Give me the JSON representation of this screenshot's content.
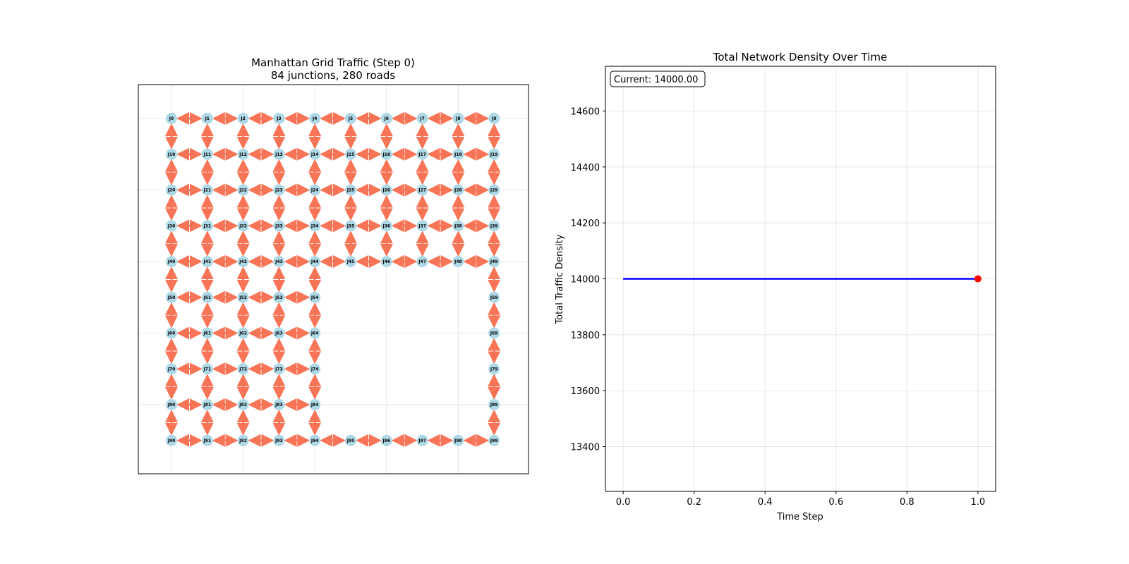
{
  "chart_data": [
    {
      "type": "network",
      "title_line1": "Manhattan Grid Traffic (Step 0)",
      "title_line2": "84 junctions, 280 roads",
      "grid_cols": 10,
      "grid_rows": 10,
      "missing_blocks": [
        {
          "rows": [
            5,
            8
          ],
          "cols": [
            5,
            8
          ]
        }
      ],
      "node_label_prefix": "J",
      "colors": {
        "node": "#add8e6",
        "edge": "#f87456",
        "grid": "#e6e6e6",
        "axis": "#000000"
      }
    },
    {
      "type": "line",
      "title": "Total Network Density Over Time",
      "xlabel": "Time Step",
      "ylabel": "Total Traffic Density",
      "x": [
        0,
        1
      ],
      "y": [
        14000,
        14000
      ],
      "current_point": {
        "x": 1,
        "y": 14000
      },
      "annotation": "Current: 14000.00",
      "xlim": [
        -0.05,
        1.05
      ],
      "ylim": [
        13240,
        14760
      ],
      "xticks": [
        0.0,
        0.2,
        0.4,
        0.6,
        0.8,
        1.0
      ],
      "xtick_labels": [
        "0.0",
        "0.2",
        "0.4",
        "0.6",
        "0.8",
        "1.0"
      ],
      "yticks": [
        13400,
        13600,
        13800,
        14000,
        14200,
        14400,
        14600
      ],
      "ytick_labels": [
        "13400",
        "13600",
        "13800",
        "14000",
        "14200",
        "14400",
        "14600"
      ],
      "grid": true,
      "colors": {
        "line": "#0000ff",
        "marker": "#ff0000",
        "grid": "#e6e6e6"
      }
    }
  ]
}
